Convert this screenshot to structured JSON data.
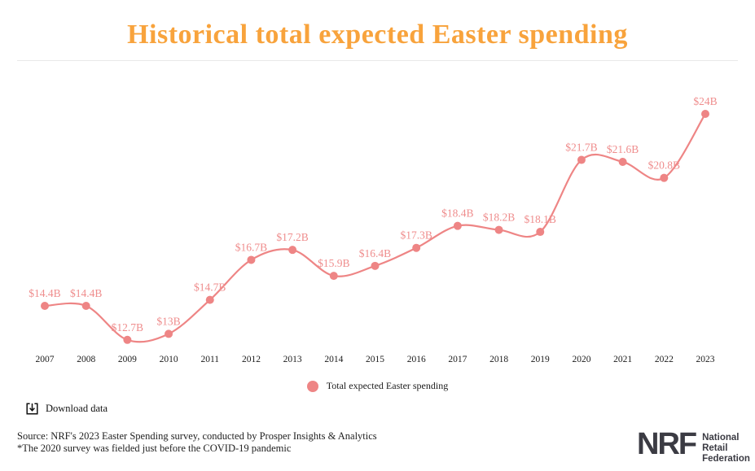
{
  "title": {
    "text": "Historical total expected Easter spending",
    "color": "#f8a33c"
  },
  "chart_data": {
    "type": "line",
    "x": [
      "2007",
      "2008",
      "2009",
      "2010",
      "2011",
      "2012",
      "2013",
      "2014",
      "2015",
      "2016",
      "2017",
      "2018",
      "2019",
      "2020",
      "2021",
      "2022",
      "2023"
    ],
    "series": [
      {
        "name": "Total expected Easter spending",
        "values": [
          14.4,
          14.4,
          12.7,
          13,
          14.7,
          16.7,
          17.2,
          15.9,
          16.4,
          17.3,
          18.4,
          18.2,
          18.1,
          21.7,
          21.6,
          20.8,
          24
        ]
      }
    ],
    "point_labels": [
      "$14.4B",
      "$14.4B",
      "$12.7B",
      "$13B",
      "$14.7B",
      "$16.7B",
      "$17.2B",
      "$15.9B",
      "$16.4B",
      "$17.3B",
      "$18.4B",
      "$18.2B",
      "$18.1B",
      "$21.7B",
      "$21.6B",
      "$20.8B",
      "$24B"
    ],
    "title": "Historical total expected Easter spending",
    "xlabel": "",
    "ylabel": "",
    "ylim": [
      12,
      25
    ],
    "grid": false,
    "y_axis_shown": false,
    "legend_position": "bottom",
    "line_color": "#ee8585",
    "label_color": "#ef8d8d",
    "tick_color": "#1c1c1c"
  },
  "legend": {
    "label": "Total expected Easter spending",
    "marker_color": "#ee8585"
  },
  "toolbar": {
    "download_label": "Download data"
  },
  "footer": {
    "source_line1": "Source: NRF's 2023 Easter Spending survey, conducted by Prosper Insights & Analytics",
    "source_line2": "*The 2020 survey was fielded just before the COVID-19 pandemic"
  },
  "logo": {
    "acronym": "NRF",
    "name": "National\nRetail\nFederation",
    "color": "#3b3b43"
  }
}
